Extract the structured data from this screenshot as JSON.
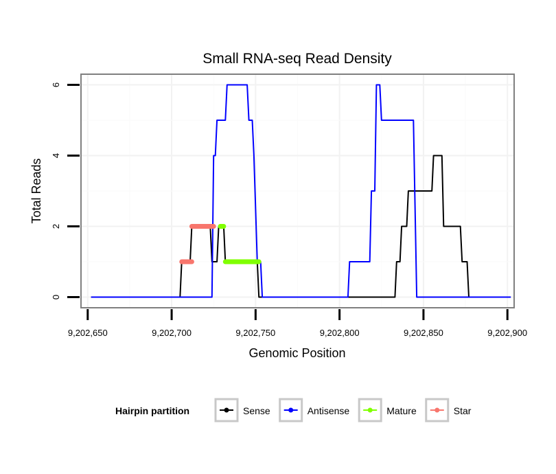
{
  "chart_data": {
    "type": "line",
    "title": "Small RNA-seq Read Density",
    "xlabel": "Genomic Position",
    "ylabel": "Total Reads",
    "xlim": [
      9202646,
      9202904
    ],
    "ylim": [
      -0.3,
      6.3
    ],
    "x_ticks": [
      9202650,
      9202700,
      9202750,
      9202800,
      9202850,
      9202900
    ],
    "x_tick_labels": [
      "9,202,650",
      "9,202,700",
      "9,202,750",
      "9,202,800",
      "9,202,850",
      "9,202,900"
    ],
    "y_ticks": [
      0,
      2,
      4,
      6
    ],
    "y_tick_labels": [
      "0",
      "2",
      "4",
      "6"
    ],
    "grid": true,
    "legend": {
      "title": "Hairpin partition",
      "placement": "bottom",
      "entries": [
        "Sense",
        "Antisense",
        "Mature",
        "Star"
      ]
    },
    "series": [
      {
        "name": "Sense",
        "color": "#000000",
        "style": "line",
        "points": [
          [
            9202652,
            0
          ],
          [
            9202705,
            0
          ],
          [
            9202706,
            1
          ],
          [
            9202711,
            1
          ],
          [
            9202712,
            2
          ],
          [
            9202723,
            2
          ],
          [
            9202724,
            1
          ],
          [
            9202727,
            1
          ],
          [
            9202728,
            2
          ],
          [
            9202731,
            2
          ],
          [
            9202732,
            1
          ],
          [
            9202751,
            1
          ],
          [
            9202752,
            0
          ],
          [
            9202833,
            0
          ],
          [
            9202834,
            1
          ],
          [
            9202836,
            1
          ],
          [
            9202837,
            2
          ],
          [
            9202840,
            2
          ],
          [
            9202841,
            3
          ],
          [
            9202855,
            3
          ],
          [
            9202856,
            4
          ],
          [
            9202861,
            4
          ],
          [
            9202862,
            2
          ],
          [
            9202872,
            2
          ],
          [
            9202873,
            1
          ],
          [
            9202876,
            1
          ],
          [
            9202877,
            0
          ],
          [
            9202902,
            0
          ]
        ]
      },
      {
        "name": "Antisense",
        "color": "#0000ff",
        "style": "line",
        "points": [
          [
            9202652,
            0
          ],
          [
            9202724,
            0
          ],
          [
            9202725,
            4
          ],
          [
            9202726,
            4
          ],
          [
            9202727,
            5
          ],
          [
            9202732,
            5
          ],
          [
            9202733,
            6
          ],
          [
            9202745,
            6
          ],
          [
            9202746,
            5
          ],
          [
            9202748,
            5
          ],
          [
            9202749,
            4
          ],
          [
            9202751,
            1
          ],
          [
            9202753,
            1
          ],
          [
            9202754,
            0
          ],
          [
            9202805,
            0
          ],
          [
            9202806,
            1
          ],
          [
            9202818,
            1
          ],
          [
            9202819,
            3
          ],
          [
            9202821,
            3
          ],
          [
            9202822,
            6
          ],
          [
            9202824,
            6
          ],
          [
            9202825,
            5
          ],
          [
            9202844,
            5
          ],
          [
            9202846,
            0
          ],
          [
            9202902,
            0
          ]
        ]
      },
      {
        "name": "Mature",
        "color": "#80ff00",
        "style": "segment",
        "segments": [
          [
            9202729,
            9202731,
            2
          ],
          [
            9202732,
            9202752,
            1
          ]
        ]
      },
      {
        "name": "Star",
        "color": "#f8766d",
        "style": "segment",
        "segments": [
          [
            9202706,
            9202712,
            1
          ],
          [
            9202712,
            9202725,
            2
          ]
        ]
      }
    ]
  }
}
